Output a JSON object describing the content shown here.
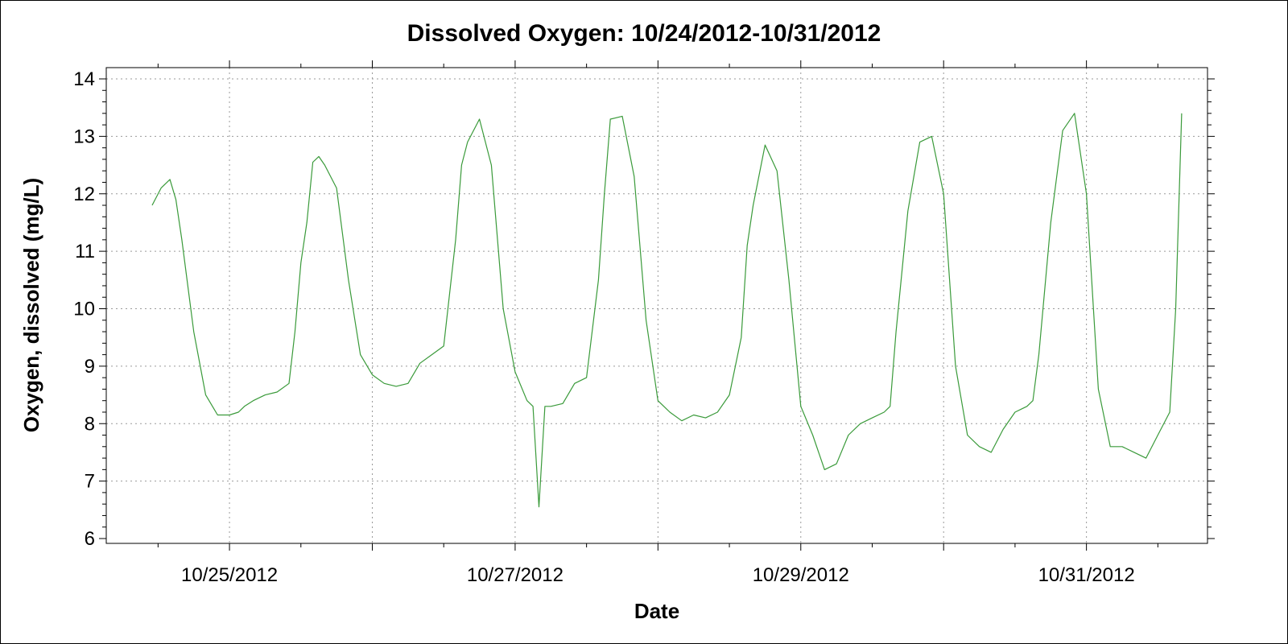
{
  "chart_data": {
    "type": "line",
    "title": "Dissolved Oxygen:  10/24/2012-10/31/2012",
    "xlabel": "Date",
    "ylabel": "Oxygen, dissolved (mg/L)",
    "xlim": [
      "10/24/2012 06:00",
      "10/31/2012 17:30"
    ],
    "ylim": [
      6,
      14
    ],
    "y_ticks": [
      6,
      7,
      8,
      9,
      10,
      11,
      12,
      13,
      14
    ],
    "x_tick_labels": [
      "10/25/2012",
      "10/27/2012",
      "10/29/2012",
      "10/31/2012"
    ],
    "grid": true,
    "legend": "none",
    "series": [
      {
        "color": "#3a9a3a",
        "x": [
          "10/24/2012 11:00",
          "10/24/2012 12:30",
          "10/24/2012 14:00",
          "10/24/2012 15:00",
          "10/24/2012 16:00",
          "10/24/2012 18:00",
          "10/24/2012 20:00",
          "10/24/2012 22:00",
          "10/25/2012 00:00",
          "10/25/2012 01:30",
          "10/25/2012 02:30",
          "10/25/2012 04:00",
          "10/25/2012 06:00",
          "10/25/2012 08:00",
          "10/25/2012 10:00",
          "10/25/2012 11:00",
          "10/25/2012 12:00",
          "10/25/2012 13:00",
          "10/25/2012 14:00",
          "10/25/2012 15:00",
          "10/25/2012 16:00",
          "10/25/2012 18:00",
          "10/25/2012 20:00",
          "10/25/2012 22:00",
          "10/26/2012 00:00",
          "10/26/2012 02:00",
          "10/26/2012 04:00",
          "10/26/2012 06:00",
          "10/26/2012 08:00",
          "10/26/2012 10:00",
          "10/26/2012 12:00",
          "10/26/2012 14:00",
          "10/26/2012 15:00",
          "10/26/2012 16:00",
          "10/26/2012 18:00",
          "10/26/2012 20:00",
          "10/26/2012 22:00",
          "10/27/2012 00:00",
          "10/27/2012 02:00",
          "10/27/2012 03:00",
          "10/27/2012 04:00",
          "10/27/2012 05:00",
          "10/27/2012 06:00",
          "10/27/2012 08:00",
          "10/27/2012 10:00",
          "10/27/2012 12:00",
          "10/27/2012 14:00",
          "10/27/2012 15:00",
          "10/27/2012 16:00",
          "10/27/2012 18:00",
          "10/27/2012 20:00",
          "10/27/2012 22:00",
          "10/28/2012 00:00",
          "10/28/2012 02:00",
          "10/28/2012 04:00",
          "10/28/2012 06:00",
          "10/28/2012 08:00",
          "10/28/2012 10:00",
          "10/28/2012 12:00",
          "10/28/2012 14:00",
          "10/28/2012 15:00",
          "10/28/2012 16:00",
          "10/28/2012 18:00",
          "10/28/2012 20:00",
          "10/28/2012 22:00",
          "10/29/2012 00:00",
          "10/29/2012 02:00",
          "10/29/2012 04:00",
          "10/29/2012 06:00",
          "10/29/2012 08:00",
          "10/29/2012 10:00",
          "10/29/2012 12:00",
          "10/29/2012 14:00",
          "10/29/2012 15:00",
          "10/29/2012 16:00",
          "10/29/2012 18:00",
          "10/29/2012 20:00",
          "10/29/2012 22:00",
          "10/30/2012 00:00",
          "10/30/2012 02:00",
          "10/30/2012 04:00",
          "10/30/2012 06:00",
          "10/30/2012 08:00",
          "10/30/2012 10:00",
          "10/30/2012 12:00",
          "10/30/2012 14:00",
          "10/30/2012 15:00",
          "10/30/2012 16:00",
          "10/30/2012 18:00",
          "10/30/2012 20:00",
          "10/30/2012 22:00",
          "10/31/2012 00:00",
          "10/31/2012 02:00",
          "10/31/2012 04:00",
          "10/31/2012 06:00",
          "10/31/2012 08:00",
          "10/31/2012 10:00",
          "10/31/2012 12:00",
          "10/31/2012 14:00",
          "10/31/2012 15:00",
          "10/31/2012 16:00"
        ],
        "y": [
          11.8,
          12.1,
          12.25,
          11.9,
          11.2,
          9.6,
          8.5,
          8.15,
          8.15,
          8.2,
          8.3,
          8.4,
          8.5,
          8.55,
          8.7,
          9.6,
          10.8,
          11.5,
          12.55,
          12.65,
          12.5,
          12.1,
          10.5,
          9.2,
          8.85,
          8.7,
          8.65,
          8.7,
          9.05,
          9.2,
          9.35,
          11.2,
          12.5,
          12.9,
          13.3,
          12.5,
          10.0,
          8.9,
          8.4,
          8.3,
          6.55,
          8.3,
          8.3,
          8.35,
          8.7,
          8.8,
          10.5,
          12.0,
          13.3,
          13.35,
          12.3,
          9.8,
          8.4,
          8.2,
          8.05,
          8.15,
          8.1,
          8.2,
          8.5,
          9.5,
          11.1,
          11.8,
          12.85,
          12.4,
          10.5,
          8.3,
          7.8,
          7.2,
          7.3,
          7.8,
          8.0,
          8.1,
          8.2,
          8.3,
          9.6,
          11.7,
          12.9,
          13.0,
          12.0,
          9.0,
          7.8,
          7.6,
          7.5,
          7.9,
          8.2,
          8.3,
          8.4,
          9.2,
          11.5,
          13.1,
          13.4,
          12.0,
          8.6,
          7.6,
          7.6,
          7.5,
          7.4,
          7.8,
          8.2,
          10.0,
          13.4
        ]
      }
    ]
  }
}
